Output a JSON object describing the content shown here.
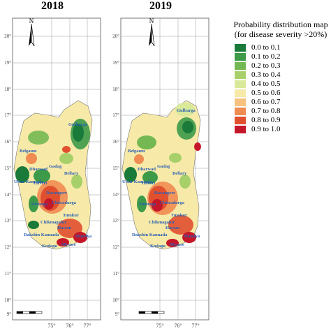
{
  "panels": [
    {
      "year": "2018",
      "lat_ticks": [
        "20°",
        "19°",
        "18°",
        "17°",
        "16°",
        "15°",
        "14°",
        "13°",
        "12°",
        "11°",
        "10°",
        "9°"
      ],
      "lon_ticks": [
        "75°",
        "76°",
        "77°"
      ],
      "north_label": "N",
      "places": [
        "Gulbarga",
        "Belgaum",
        "Dharwad",
        "Gadag",
        "Bellary",
        "Uttar Kannada",
        "Haveri",
        "Davangere",
        "Shimoga",
        "Chitradurga",
        "Chikmagalur",
        "Tumkur",
        "Hassan",
        "Dakshin Kannada",
        "Kodagu",
        "Mysore",
        "Mandya"
      ]
    },
    {
      "year": "2019",
      "lat_ticks": [
        "20°",
        "19°",
        "18°",
        "17°",
        "16°",
        "15°",
        "14°",
        "13°",
        "12°",
        "11°",
        "10°",
        "9°"
      ],
      "lon_ticks": [
        "75°",
        "76°",
        "77°"
      ],
      "north_label": "N",
      "places": [
        "Gulbarga",
        "Belgaum",
        "Dharwad",
        "Gadag",
        "Bellary",
        "Uttar Kannada",
        "Haveri",
        "Davangere",
        "Shimoga",
        "Chitradurga",
        "Chikmagalur",
        "Tumkur",
        "Hassan",
        "Dakshin Kannada",
        "Kodagu",
        "Mysore",
        "Mandya"
      ]
    }
  ],
  "legend": {
    "title_line1": "Probability distribution map",
    "title_line2": "(for disease severity >20%)",
    "items": [
      {
        "label": "0.0 to 0.1",
        "color": "#1a7a3a"
      },
      {
        "label": "0.1 to 0.2",
        "color": "#3c9a48"
      },
      {
        "label": "0.2 to 0.3",
        "color": "#74b853"
      },
      {
        "label": "0.3 to 0.4",
        "color": "#a8d06a"
      },
      {
        "label": "0.4 to 0.5",
        "color": "#d9e99a"
      },
      {
        "label": "0.5 to 0.6",
        "color": "#f7eaa8"
      },
      {
        "label": "0.6 to 0.7",
        "color": "#f6c27d"
      },
      {
        "label": "0.7 to 0.8",
        "color": "#ef8c52"
      },
      {
        "label": "0.8 to 0.9",
        "color": "#e0502f"
      },
      {
        "label": "0.9 to 1.0",
        "color": "#c4172a"
      }
    ]
  }
}
